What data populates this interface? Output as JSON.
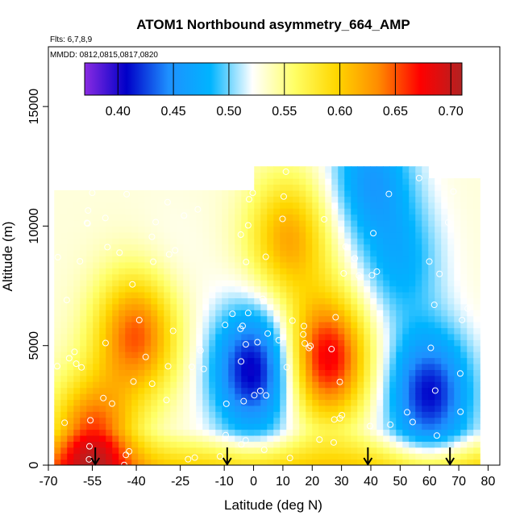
{
  "chart_data": {
    "type": "heatmap",
    "title": "ATOM1 Northbound asymmetry_664_AMP",
    "flights_label": "Flts: 6,7,8,9",
    "dates_label": "MMDD: 0812,0815,0817,0820",
    "xlabel": "Latitude (deg N)",
    "ylabel": "Altitude (m)",
    "xlim": [
      -70,
      84
    ],
    "ylim": [
      0,
      17500
    ],
    "x_ticks": [
      "-70",
      "-55",
      "-40",
      "-25",
      "-10",
      "0",
      "10",
      "20",
      "30",
      "40",
      "50",
      "60",
      "70",
      "80"
    ],
    "x_tick_values": [
      -70,
      -55,
      -40,
      -25,
      -10,
      0,
      10,
      20,
      30,
      40,
      50,
      60,
      70,
      80
    ],
    "y_ticks": [
      "0",
      "5000",
      "10000",
      "15000"
    ],
    "y_tick_values": [
      0,
      5000,
      10000,
      15000
    ],
    "colorbar": {
      "min": 0.37,
      "max": 0.71,
      "ticks": [
        "0.40",
        "0.45",
        "0.50",
        "0.55",
        "0.60",
        "0.65",
        "0.70"
      ],
      "tick_values": [
        0.4,
        0.45,
        0.5,
        0.55,
        0.6,
        0.65,
        0.7
      ],
      "colors": [
        "#8a2be2",
        "#0000c8",
        "#1e90ff",
        "#00b4ff",
        "#ffffff",
        "#ffff66",
        "#ffd700",
        "#ff8c00",
        "#ff0000",
        "#b22222"
      ]
    },
    "profile_markers_lat": [
      -54,
      -9,
      39,
      67
    ],
    "profile_markers_alt": [
      0,
      0,
      0,
      0
    ],
    "field_features": [
      {
        "lat": 0,
        "alt": 4000,
        "value": 0.4
      },
      {
        "lat": 25,
        "alt": 4500,
        "value": 0.68
      },
      {
        "lat": 12,
        "alt": 9500,
        "value": 0.62
      },
      {
        "lat": 60,
        "alt": 3000,
        "value": 0.41
      },
      {
        "lat": -40,
        "alt": 5500,
        "value": 0.65
      },
      {
        "lat": 50,
        "alt": 8500,
        "value": 0.48
      },
      {
        "lat": -55,
        "alt": 1000,
        "value": 0.66
      },
      {
        "lat": -30,
        "alt": 8000,
        "value": 0.52
      },
      {
        "lat": 40,
        "alt": 12000,
        "value": 0.46
      }
    ]
  }
}
